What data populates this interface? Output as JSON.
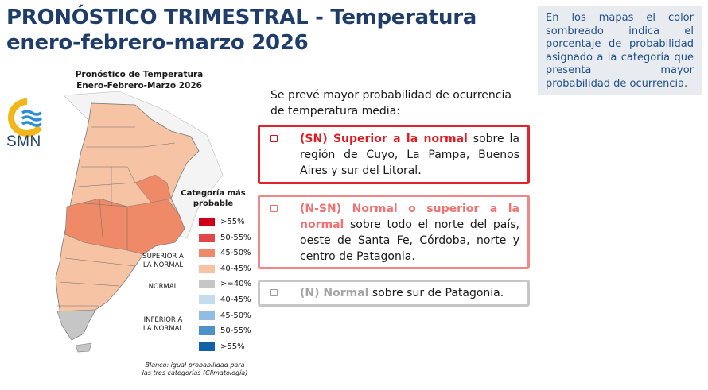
{
  "title": {
    "line1": "PRONÓSTICO TRIMESTRAL - Temperatura",
    "line2": "enero-febrero-marzo 2026"
  },
  "note": "En los mapas el color sombreado indica el porcentaje de probabilidad asignado a la categoría que presenta mayor probabilidad de ocurrencia.",
  "map": {
    "title_line1": "Pronóstico de Temperatura",
    "title_line2": "Enero-Febrero-Marzo 2026",
    "logo_text": "SMN",
    "legend_title_line1": "Categoría más",
    "legend_title_line2": "probable",
    "legend": [
      {
        "label": ">55%",
        "color": "#d0001b"
      },
      {
        "label": "50-55%",
        "color": "#de4a4a"
      },
      {
        "label": "45-50%",
        "color": "#ef8a68"
      },
      {
        "label": "40-45%",
        "color": "#f6c3a4"
      },
      {
        "label": ">=40%",
        "color": "#c6c6c6"
      },
      {
        "label": "40-45%",
        "color": "#c4dced"
      },
      {
        "label": "45-50%",
        "color": "#91bde0"
      },
      {
        "label": "50-55%",
        "color": "#4c92c9"
      },
      {
        "label": ">55%",
        "color": "#1061a8"
      }
    ],
    "group_superior_line1": "SUPERIOR A",
    "group_superior_line2": "LA NORMAL",
    "group_normal": "NORMAL",
    "group_inferior_line1": "INFERIOR A",
    "group_inferior_line2": "LA NORMAL",
    "footnote_line1": "Blanco: igual probabilidad para",
    "footnote_line2": "las tres categorías (Climatología)"
  },
  "intro": "Se prevé mayor probabilidad de ocurrencia de temperatura media:",
  "forecasts": [
    {
      "category": "(SN) Superior a la normal",
      "text": " sobre la región de Cuyo, La Pampa, Buenos Aires y sur del Litoral."
    },
    {
      "category": "(N-SN) Normal o superior a la normal",
      "text": " sobre todo el norte del país, oeste de Santa Fe, Córdoba, norte y centro de Patagonia."
    },
    {
      "category": "(N) Normal",
      "text": " sobre sur de Patagonia."
    }
  ]
}
